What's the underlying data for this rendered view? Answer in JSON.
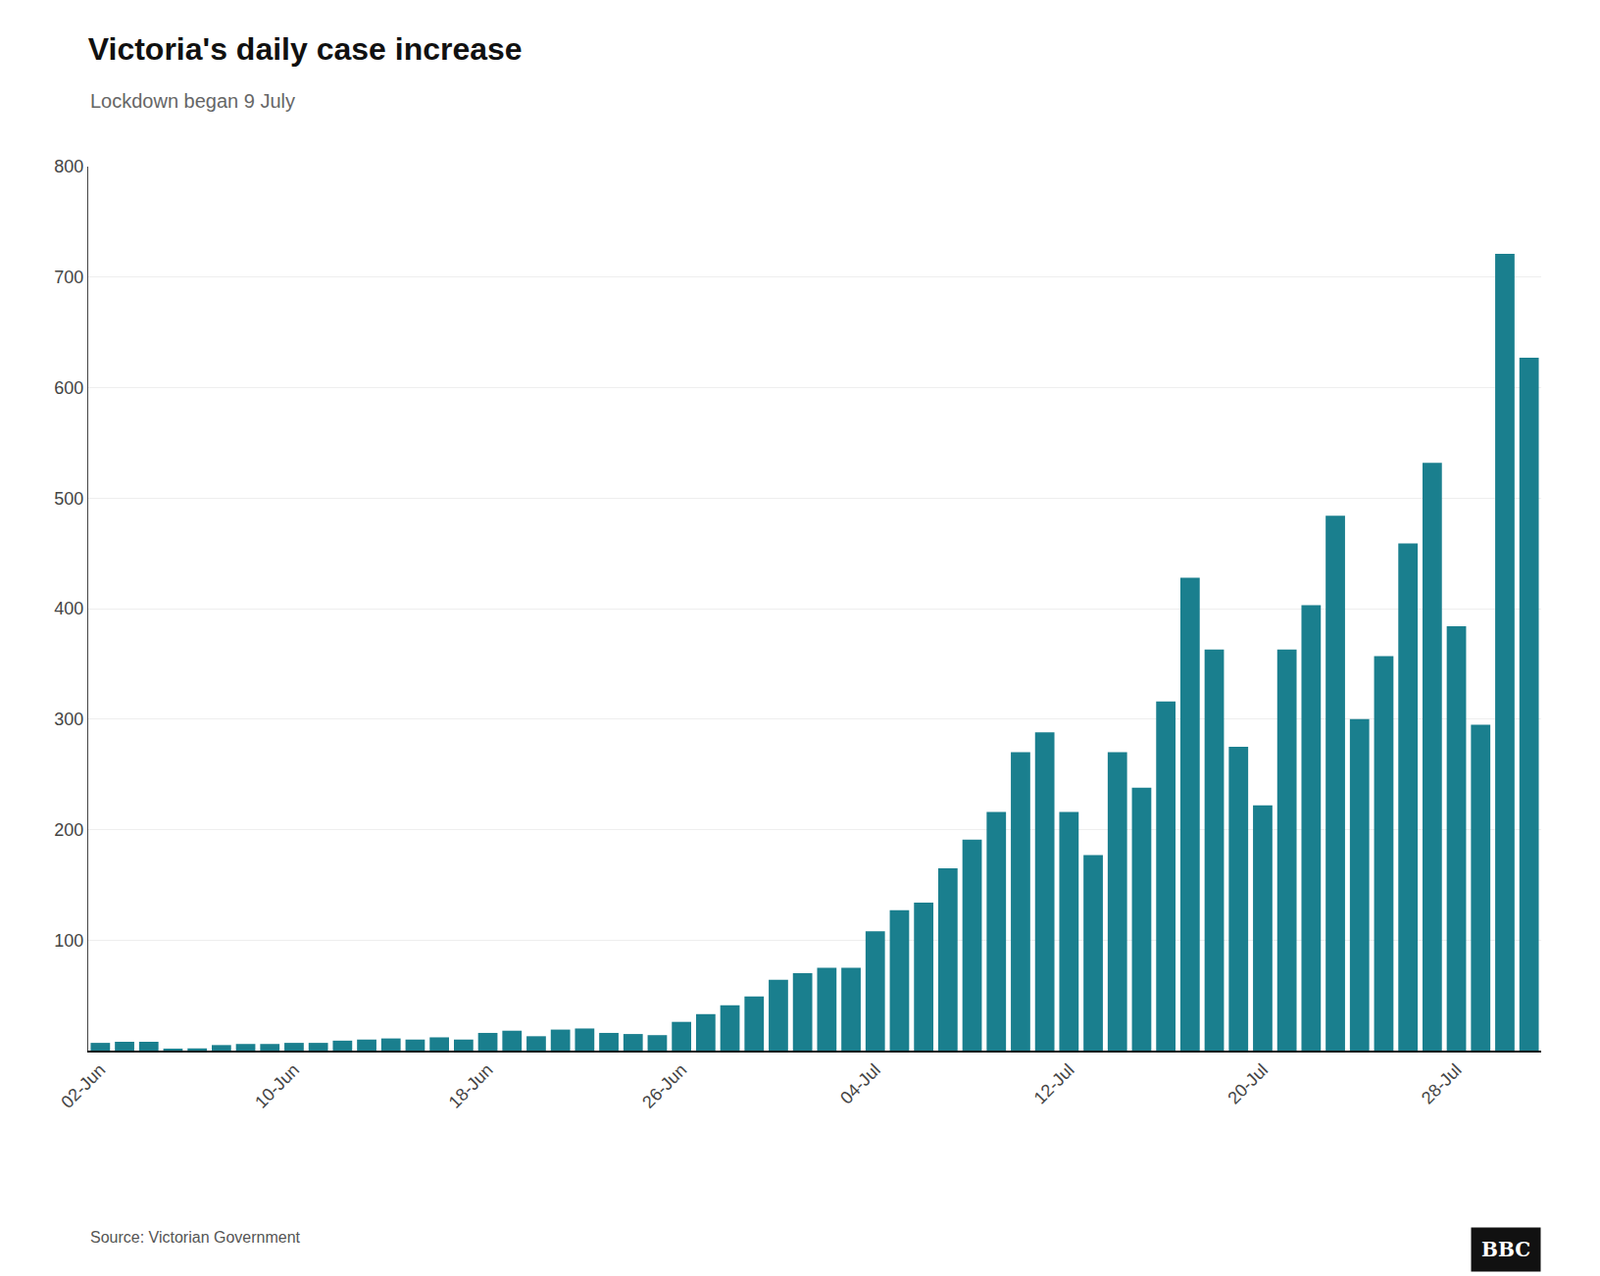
{
  "chart_data": {
    "type": "bar",
    "title": "Victoria's daily case increase",
    "subtitle": "Lockdown began 9 July",
    "source": "Source: Victorian Government",
    "annotations": [
      "BBC"
    ],
    "categories": [
      "02-Jun",
      null,
      null,
      null,
      null,
      null,
      null,
      null,
      "10-Jun",
      null,
      null,
      null,
      null,
      null,
      null,
      null,
      "18-Jun",
      null,
      null,
      null,
      null,
      null,
      null,
      null,
      "26-Jun",
      null,
      null,
      null,
      null,
      null,
      null,
      null,
      "04-Jul",
      null,
      null,
      null,
      null,
      null,
      null,
      null,
      "12-Jul",
      null,
      null,
      null,
      null,
      null,
      null,
      null,
      "20-Jul",
      null,
      null,
      null,
      null,
      null,
      null,
      null,
      "28-Jul",
      null,
      null,
      null
    ],
    "values": [
      7,
      8,
      8,
      1,
      2,
      5,
      6,
      6,
      7,
      7,
      9,
      10,
      11,
      10,
      12,
      10,
      16,
      18,
      13,
      19,
      20,
      16,
      15,
      14,
      26,
      33,
      41,
      49,
      64,
      70,
      75,
      75,
      108,
      127,
      134,
      165,
      191,
      216,
      270,
      288,
      216,
      177,
      270,
      238,
      316,
      428,
      363,
      275,
      222,
      363,
      403,
      484,
      300,
      357,
      459,
      532,
      384,
      295,
      721,
      627
    ],
    "color": "#1a7f8e",
    "ylim": [
      0,
      800
    ],
    "yticks": [
      100,
      200,
      300,
      400,
      500,
      600,
      700,
      800
    ],
    "grid": true
  }
}
